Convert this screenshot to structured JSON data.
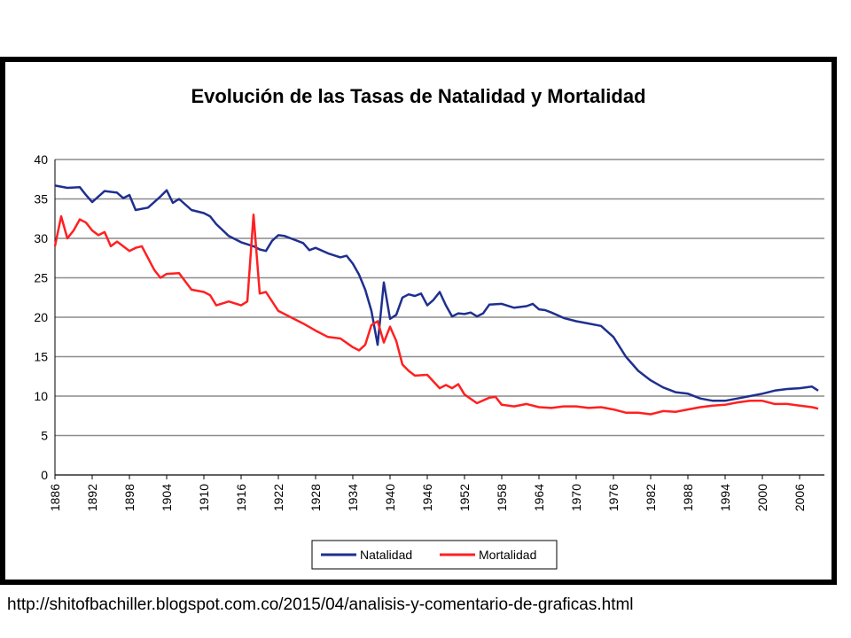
{
  "caption": "http://shitofbachiller.blogspot.com.co/2015/04/analisis-y-comentario-de-graficas.html",
  "chart_data": {
    "type": "line",
    "title": "Evolución de las Tasas de Natalidad y Mortalidad",
    "xlabel": "",
    "ylabel": "",
    "ylim": [
      0,
      40
    ],
    "yticks": [
      0,
      5,
      10,
      15,
      20,
      25,
      30,
      35,
      40
    ],
    "xlim": [
      1886,
      2010
    ],
    "xticks": [
      "1886",
      "1892",
      "1898",
      "1904",
      "1910",
      "1916",
      "1922",
      "1928",
      "1934",
      "1940",
      "1946",
      "1952",
      "1958",
      "1964",
      "1970",
      "1976",
      "1982",
      "1988",
      "1994",
      "2000",
      "2006"
    ],
    "grid": "horizontal",
    "legend": "bottom-center",
    "colors": {
      "Natalidad": "#1f2f8f",
      "Mortalidad": "#ff2020"
    },
    "series": [
      {
        "name": "Natalidad",
        "x": [
          1886,
          1888,
          1890,
          1891,
          1892,
          1894,
          1896,
          1897,
          1898,
          1899,
          1901,
          1903,
          1904,
          1905,
          1906,
          1908,
          1910,
          1911,
          1912,
          1914,
          1916,
          1918,
          1919,
          1920,
          1921,
          1922,
          1923,
          1924,
          1926,
          1927,
          1928,
          1930,
          1932,
          1933,
          1934,
          1935,
          1936,
          1937,
          1938,
          1939,
          1940,
          1941,
          1942,
          1943,
          1944,
          1945,
          1946,
          1947,
          1948,
          1949,
          1950,
          1951,
          1952,
          1953,
          1954,
          1955,
          1956,
          1958,
          1960,
          1962,
          1963,
          1964,
          1965,
          1966,
          1968,
          1970,
          1972,
          1974,
          1976,
          1978,
          1980,
          1982,
          1984,
          1986,
          1988,
          1990,
          1992,
          1994,
          1996,
          1998,
          2000,
          2002,
          2004,
          2006,
          2008,
          2009
        ],
        "values": [
          36.7,
          36.4,
          36.5,
          35.5,
          34.6,
          36.0,
          35.8,
          35.1,
          35.5,
          33.6,
          33.9,
          35.3,
          36.1,
          34.5,
          35.0,
          33.6,
          33.2,
          32.8,
          31.8,
          30.3,
          29.5,
          29.0,
          28.6,
          28.4,
          29.7,
          30.4,
          30.3,
          30.0,
          29.4,
          28.5,
          28.8,
          28.1,
          27.6,
          27.8,
          26.8,
          25.4,
          23.5,
          20.8,
          16.5,
          24.4,
          19.8,
          20.3,
          22.5,
          22.9,
          22.7,
          23.0,
          21.5,
          22.2,
          23.2,
          21.5,
          20.1,
          20.5,
          20.4,
          20.6,
          20.1,
          20.5,
          21.6,
          21.7,
          21.2,
          21.4,
          21.7,
          21.0,
          20.9,
          20.6,
          19.9,
          19.5,
          19.2,
          18.9,
          17.5,
          15.0,
          13.2,
          12.0,
          11.1,
          10.5,
          10.3,
          9.7,
          9.4,
          9.4,
          9.7,
          10.0,
          10.3,
          10.7,
          10.9,
          11.0,
          11.2,
          10.7
        ]
      },
      {
        "name": "Mortalidad",
        "x": [
          1886,
          1887,
          1888,
          1889,
          1890,
          1891,
          1892,
          1893,
          1894,
          1895,
          1896,
          1897,
          1898,
          1899,
          1900,
          1902,
          1903,
          1904,
          1906,
          1908,
          1910,
          1911,
          1912,
          1914,
          1916,
          1917,
          1918,
          1919,
          1920,
          1922,
          1924,
          1926,
          1928,
          1930,
          1932,
          1934,
          1935,
          1936,
          1937,
          1938,
          1939,
          1940,
          1941,
          1942,
          1943,
          1944,
          1946,
          1948,
          1949,
          1950,
          1951,
          1952,
          1954,
          1956,
          1957,
          1958,
          1960,
          1962,
          1964,
          1966,
          1968,
          1970,
          1972,
          1974,
          1976,
          1978,
          1980,
          1982,
          1984,
          1986,
          1988,
          1990,
          1992,
          1994,
          1996,
          1998,
          2000,
          2002,
          2004,
          2006,
          2008,
          2009
        ],
        "values": [
          29.0,
          32.8,
          30.0,
          31.0,
          32.4,
          32.0,
          31.0,
          30.4,
          30.8,
          29.0,
          29.6,
          29.0,
          28.4,
          28.8,
          29.0,
          26.0,
          25.0,
          25.5,
          25.6,
          23.5,
          23.2,
          22.8,
          21.5,
          22.0,
          21.5,
          22.0,
          33.0,
          23.0,
          23.2,
          20.8,
          20.0,
          19.2,
          18.3,
          17.5,
          17.3,
          16.2,
          15.8,
          16.5,
          19.0,
          19.5,
          16.8,
          18.8,
          17.0,
          14.0,
          13.2,
          12.6,
          12.7,
          11.0,
          11.4,
          11.0,
          11.5,
          10.2,
          9.1,
          9.8,
          9.9,
          8.9,
          8.7,
          9.0,
          8.6,
          8.5,
          8.7,
          8.7,
          8.5,
          8.6,
          8.3,
          7.9,
          7.9,
          7.7,
          8.1,
          8.0,
          8.3,
          8.6,
          8.8,
          8.9,
          9.2,
          9.4,
          9.4,
          9.0,
          9.0,
          8.8,
          8.6,
          8.4
        ]
      }
    ]
  }
}
